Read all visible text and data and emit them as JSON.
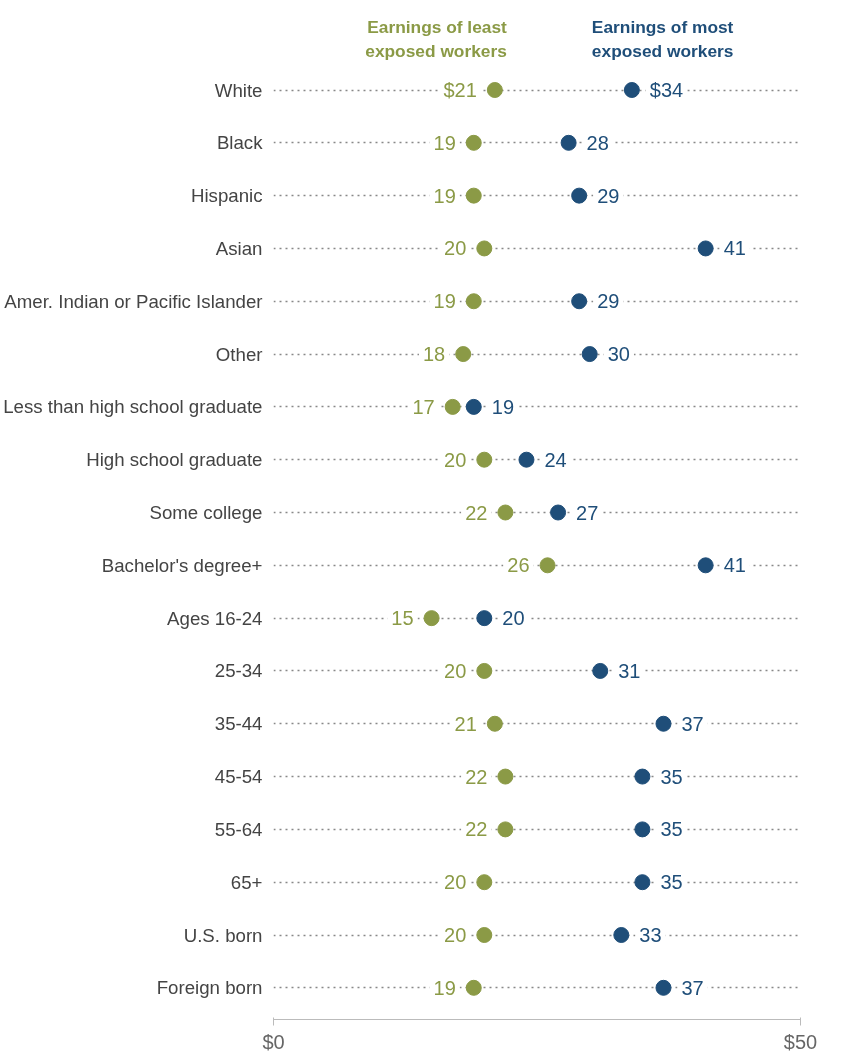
{
  "chart_data": {
    "type": "scatter",
    "orientation": "horizontal",
    "categories": [
      "White",
      "Black",
      "Hispanic",
      "Asian",
      "Amer. Indian or Pacific Islander",
      "Other",
      "Less than high school graduate",
      "High school graduate",
      "Some college",
      "Bachelor's degree+",
      "Ages 16-24",
      "25-34",
      "35-44",
      "45-54",
      "55-64",
      "65+",
      "U.S. born",
      "Foreign born"
    ],
    "series": [
      {
        "name": "Earnings of least exposed workers",
        "color": "#8b9a46",
        "values": [
          21,
          19,
          19,
          20,
          19,
          18,
          17,
          20,
          22,
          26,
          15,
          20,
          21,
          22,
          22,
          20,
          20,
          19
        ],
        "value_labels": [
          "$21",
          "19",
          "19",
          "20",
          "19",
          "18",
          "17",
          "20",
          "22",
          "26",
          "15",
          "20",
          "21",
          "22",
          "22",
          "20",
          "20",
          "19"
        ]
      },
      {
        "name": "Earnings of most exposed workers",
        "color": "#1f4e79",
        "values": [
          34,
          28,
          29,
          41,
          29,
          30,
          19,
          24,
          27,
          41,
          20,
          31,
          37,
          35,
          35,
          35,
          33,
          37
        ],
        "value_labels": [
          "$34",
          "28",
          "29",
          "41",
          "29",
          "30",
          "19",
          "24",
          "27",
          "41",
          "20",
          "31",
          "37",
          "35",
          "35",
          "35",
          "33",
          "37"
        ]
      }
    ],
    "xlim": [
      0,
      50
    ],
    "xticks": [
      {
        "value": 0,
        "label": "$0"
      },
      {
        "value": 50,
        "label": "$50"
      }
    ],
    "grid": "y",
    "line_style": "dotted",
    "marker": "circle",
    "legend": "top"
  }
}
